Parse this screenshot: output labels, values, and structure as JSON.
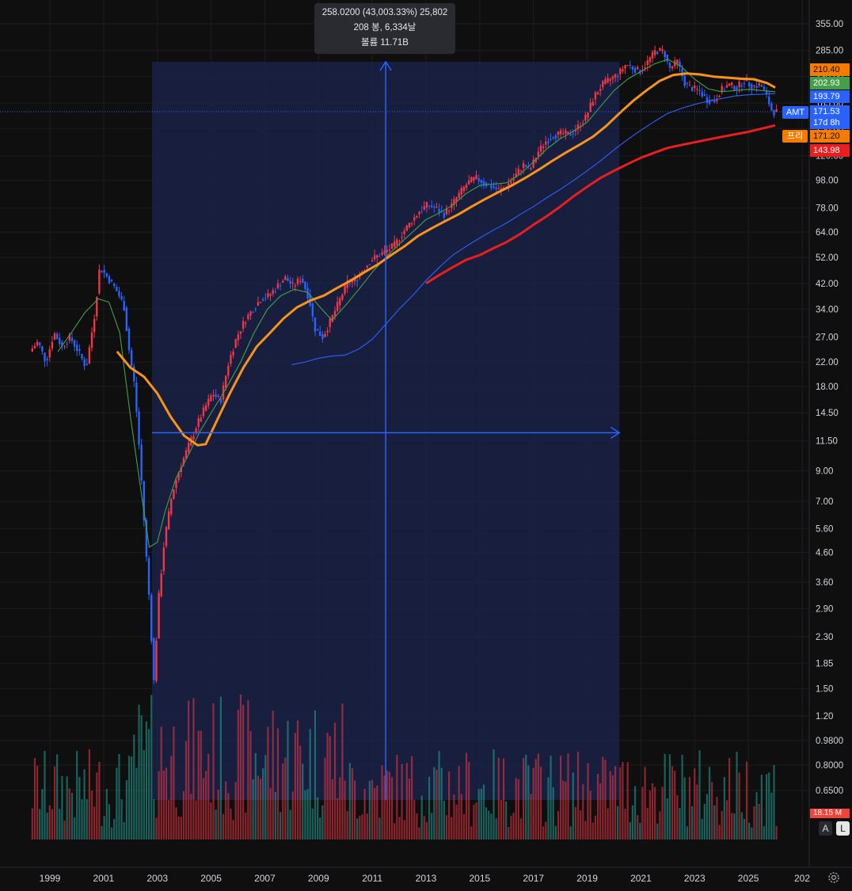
{
  "tooltip": {
    "line1": "258.0200 (43,003.33%) 25,802",
    "line2": "208 봉, 6,334날",
    "line3": "볼륨 11.71B"
  },
  "ticker": "AMT",
  "pre_label": "프리",
  "badges": {
    "ma_top": {
      "value": "210.40",
      "color": "#f57c00"
    },
    "ma_green": {
      "value": "202.93",
      "color": "#43a047"
    },
    "ma_blue": {
      "value": "193.79",
      "color": "#2962ff"
    },
    "price": {
      "value": "171.53",
      "countdown": "17d 8h",
      "color": "#2962ff"
    },
    "pre_price": {
      "value": "171.20",
      "color": "#f57c00"
    },
    "ma_red": {
      "value": "143.98",
      "color": "#e91e1e"
    },
    "volume": {
      "value": "18.15 M",
      "color": "#f44336"
    }
  },
  "scale_buttons": {
    "auto": "A",
    "log": "L"
  },
  "icons": {
    "settings": "gear-icon"
  },
  "colors": {
    "up": "#f23645",
    "down": "#2962ff",
    "ma20": "#43a047",
    "ma50": "#f7931a",
    "ma100": "#2962ff",
    "ma200": "#e91e1e",
    "range_fill": "#1a2246"
  },
  "chart_data": {
    "type": "candlestick",
    "title": "",
    "y_scale": "log",
    "y_ticks": [
      "355.00",
      "285.00",
      "230.00",
      "185.00",
      "150.00",
      "120.00",
      "98.00",
      "78.00",
      "64.00",
      "52.00",
      "42.00",
      "34.00",
      "27.00",
      "22.00",
      "18.00",
      "14.50",
      "11.50",
      "9.00",
      "7.00",
      "5.60",
      "4.60",
      "3.60",
      "2.90",
      "2.30",
      "1.85",
      "1.50",
      "1.20",
      "0.9800",
      "0.8000",
      "0.6500"
    ],
    "x_ticks": [
      "1999",
      "2001",
      "2003",
      "2005",
      "2007",
      "2009",
      "2011",
      "2013",
      "2015",
      "2017",
      "2019",
      "2021",
      "2023",
      "2025",
      "202"
    ],
    "x_range": [
      1998.0,
      2027.0
    ],
    "ylim": [
      0.5,
      400
    ],
    "price_path": [
      [
        1998.3,
        24
      ],
      [
        1998.6,
        26
      ],
      [
        1998.9,
        22
      ],
      [
        1999.2,
        28
      ],
      [
        1999.5,
        25
      ],
      [
        1999.8,
        27
      ],
      [
        2000.1,
        24
      ],
      [
        2000.4,
        21
      ],
      [
        2000.7,
        32
      ],
      [
        2000.9,
        48
      ],
      [
        2001.2,
        44
      ],
      [
        2001.5,
        40
      ],
      [
        2001.8,
        35
      ],
      [
        2002.0,
        24
      ],
      [
        2002.2,
        18
      ],
      [
        2002.4,
        10
      ],
      [
        2002.6,
        5
      ],
      [
        2002.8,
        2.6
      ],
      [
        2002.9,
        1.5
      ],
      [
        2003.1,
        3.2
      ],
      [
        2003.3,
        5
      ],
      [
        2003.6,
        7.5
      ],
      [
        2003.9,
        9.3
      ],
      [
        2004.2,
        11
      ],
      [
        2004.5,
        13
      ],
      [
        2004.8,
        15
      ],
      [
        2005.1,
        17
      ],
      [
        2005.4,
        16
      ],
      [
        2005.7,
        22
      ],
      [
        2006.0,
        27
      ],
      [
        2006.3,
        31
      ],
      [
        2006.6,
        34
      ],
      [
        2006.9,
        37
      ],
      [
        2007.2,
        38
      ],
      [
        2007.5,
        41
      ],
      [
        2007.8,
        44
      ],
      [
        2008.1,
        41
      ],
      [
        2008.4,
        44
      ],
      [
        2008.7,
        37
      ],
      [
        2008.9,
        29
      ],
      [
        2009.2,
        27
      ],
      [
        2009.5,
        31
      ],
      [
        2009.8,
        36
      ],
      [
        2010.1,
        42
      ],
      [
        2010.4,
        43
      ],
      [
        2010.7,
        47
      ],
      [
        2011.0,
        51
      ],
      [
        2011.3,
        53
      ],
      [
        2011.6,
        55
      ],
      [
        2011.9,
        58
      ],
      [
        2012.2,
        64
      ],
      [
        2012.5,
        70
      ],
      [
        2012.8,
        76
      ],
      [
        2013.1,
        80
      ],
      [
        2013.4,
        78
      ],
      [
        2013.7,
        74
      ],
      [
        2014.0,
        80
      ],
      [
        2014.3,
        88
      ],
      [
        2014.6,
        96
      ],
      [
        2014.9,
        100
      ],
      [
        2015.2,
        96
      ],
      [
        2015.5,
        93
      ],
      [
        2015.8,
        90
      ],
      [
        2016.1,
        95
      ],
      [
        2016.4,
        103
      ],
      [
        2016.7,
        112
      ],
      [
        2016.9,
        106
      ],
      [
        2017.2,
        123
      ],
      [
        2017.5,
        135
      ],
      [
        2017.8,
        142
      ],
      [
        2018.1,
        144
      ],
      [
        2018.4,
        143
      ],
      [
        2018.7,
        152
      ],
      [
        2019.0,
        165
      ],
      [
        2019.3,
        195
      ],
      [
        2019.6,
        215
      ],
      [
        2019.9,
        225
      ],
      [
        2020.2,
        235
      ],
      [
        2020.5,
        255
      ],
      [
        2020.8,
        245
      ],
      [
        2021.0,
        240
      ],
      [
        2021.3,
        260
      ],
      [
        2021.6,
        285
      ],
      [
        2021.9,
        283
      ],
      [
        2022.1,
        245
      ],
      [
        2022.4,
        260
      ],
      [
        2022.7,
        215
      ],
      [
        2022.9,
        210
      ],
      [
        2023.2,
        205
      ],
      [
        2023.5,
        190
      ],
      [
        2023.8,
        188
      ],
      [
        2024.0,
        205
      ],
      [
        2024.3,
        215
      ],
      [
        2024.6,
        210
      ],
      [
        2024.9,
        222
      ],
      [
        2025.2,
        212
      ],
      [
        2025.5,
        215
      ],
      [
        2025.7,
        198
      ],
      [
        2025.9,
        175
      ],
      [
        2026.0,
        172
      ]
    ],
    "series": [
      {
        "name": "",
        "kind": "ma20",
        "points": [
          [
            1999.3,
            24
          ],
          [
            1999.8,
            28
          ],
          [
            2000.3,
            33
          ],
          [
            2000.8,
            37
          ],
          [
            2001.2,
            36
          ],
          [
            2001.6,
            28
          ],
          [
            2002.0,
            14
          ],
          [
            2002.4,
            7.5
          ],
          [
            2002.7,
            4.8
          ],
          [
            2003.0,
            5
          ],
          [
            2003.3,
            6.5
          ],
          [
            2003.7,
            8.5
          ],
          [
            2004.1,
            10
          ],
          [
            2004.6,
            12.5
          ],
          [
            2005.1,
            15
          ],
          [
            2005.6,
            18
          ],
          [
            2006.1,
            22
          ],
          [
            2006.6,
            28
          ],
          [
            2007.1,
            34
          ],
          [
            2007.6,
            38
          ],
          [
            2008.1,
            40
          ],
          [
            2008.6,
            39
          ],
          [
            2009.0,
            35
          ],
          [
            2009.5,
            31
          ],
          [
            2010.0,
            35
          ],
          [
            2010.5,
            40
          ],
          [
            2011.0,
            46
          ],
          [
            2011.5,
            52
          ],
          [
            2012.0,
            58
          ],
          [
            2012.5,
            64
          ],
          [
            2013.0,
            71
          ],
          [
            2013.5,
            75
          ],
          [
            2014.0,
            80
          ],
          [
            2014.5,
            88
          ],
          [
            2015.0,
            94
          ],
          [
            2015.5,
            95
          ],
          [
            2016.0,
            96
          ],
          [
            2016.5,
            103
          ],
          [
            2017.0,
            114
          ],
          [
            2017.5,
            127
          ],
          [
            2018.0,
            138
          ],
          [
            2018.5,
            147
          ],
          [
            2019.0,
            158
          ],
          [
            2019.5,
            180
          ],
          [
            2020.0,
            205
          ],
          [
            2020.5,
            225
          ],
          [
            2021.0,
            240
          ],
          [
            2021.5,
            255
          ],
          [
            2022.0,
            265
          ],
          [
            2022.5,
            250
          ],
          [
            2023.0,
            225
          ],
          [
            2023.5,
            208
          ],
          [
            2024.0,
            203
          ],
          [
            2024.5,
            205
          ],
          [
            2025.0,
            207
          ],
          [
            2025.5,
            205
          ],
          [
            2026.0,
            203
          ]
        ]
      },
      {
        "name": "",
        "kind": "ma50",
        "points": [
          [
            2001.5,
            24
          ],
          [
            2002.0,
            21
          ],
          [
            2002.5,
            19.5
          ],
          [
            2003.0,
            17
          ],
          [
            2003.5,
            14
          ],
          [
            2004.0,
            12
          ],
          [
            2004.5,
            11.1
          ],
          [
            2004.8,
            11.2
          ],
          [
            2005.2,
            13.5
          ],
          [
            2005.7,
            17
          ],
          [
            2006.2,
            21
          ],
          [
            2006.7,
            25
          ],
          [
            2007.2,
            28
          ],
          [
            2007.7,
            31.5
          ],
          [
            2008.2,
            34.5
          ],
          [
            2008.7,
            36.5
          ],
          [
            2009.2,
            38
          ],
          [
            2009.7,
            40.5
          ],
          [
            2010.2,
            43
          ],
          [
            2010.7,
            46
          ],
          [
            2011.2,
            49
          ],
          [
            2011.7,
            53
          ],
          [
            2012.2,
            57
          ],
          [
            2012.7,
            62
          ],
          [
            2013.2,
            66
          ],
          [
            2013.7,
            70
          ],
          [
            2014.2,
            74
          ],
          [
            2014.7,
            79
          ],
          [
            2015.2,
            84
          ],
          [
            2015.7,
            89
          ],
          [
            2016.2,
            94
          ],
          [
            2016.7,
            100
          ],
          [
            2017.2,
            107
          ],
          [
            2017.7,
            115
          ],
          [
            2018.2,
            123
          ],
          [
            2018.7,
            131
          ],
          [
            2019.2,
            140
          ],
          [
            2019.7,
            153
          ],
          [
            2020.2,
            170
          ],
          [
            2020.7,
            188
          ],
          [
            2021.2,
            205
          ],
          [
            2021.7,
            222
          ],
          [
            2022.2,
            233
          ],
          [
            2022.7,
            236
          ],
          [
            2023.2,
            234
          ],
          [
            2023.7,
            230
          ],
          [
            2024.2,
            228
          ],
          [
            2024.7,
            226
          ],
          [
            2025.2,
            225
          ],
          [
            2025.7,
            218
          ],
          [
            2026.0,
            210
          ]
        ]
      },
      {
        "name": "",
        "kind": "ma100",
        "points": [
          [
            2008.0,
            21.5
          ],
          [
            2008.5,
            22
          ],
          [
            2009.0,
            22.7
          ],
          [
            2009.5,
            23.1
          ],
          [
            2010.0,
            23.3
          ],
          [
            2010.5,
            24.5
          ],
          [
            2011.0,
            26.5
          ],
          [
            2011.5,
            30
          ],
          [
            2012.0,
            34
          ],
          [
            2012.5,
            38
          ],
          [
            2013.0,
            43
          ],
          [
            2013.5,
            48
          ],
          [
            2014.0,
            53
          ],
          [
            2014.5,
            57
          ],
          [
            2015.0,
            61
          ],
          [
            2015.5,
            65
          ],
          [
            2016.0,
            69
          ],
          [
            2016.5,
            74
          ],
          [
            2017.0,
            79
          ],
          [
            2017.5,
            85
          ],
          [
            2018.0,
            91
          ],
          [
            2018.5,
            98
          ],
          [
            2019.0,
            106
          ],
          [
            2019.5,
            115
          ],
          [
            2020.0,
            126
          ],
          [
            2020.5,
            137
          ],
          [
            2021.0,
            148
          ],
          [
            2021.5,
            159
          ],
          [
            2022.0,
            170
          ],
          [
            2022.5,
            177
          ],
          [
            2023.0,
            183
          ],
          [
            2023.5,
            188
          ],
          [
            2024.0,
            192
          ],
          [
            2024.5,
            196
          ],
          [
            2025.0,
            198
          ],
          [
            2025.5,
            199
          ],
          [
            2026.0,
            200
          ]
        ]
      },
      {
        "name": "",
        "kind": "ma200",
        "points": [
          [
            2013.0,
            42
          ],
          [
            2013.5,
            45
          ],
          [
            2014.0,
            48
          ],
          [
            2014.5,
            51
          ],
          [
            2015.0,
            53
          ],
          [
            2015.5,
            56
          ],
          [
            2016.0,
            59
          ],
          [
            2016.5,
            63
          ],
          [
            2017.0,
            68
          ],
          [
            2017.5,
            73
          ],
          [
            2018.0,
            79
          ],
          [
            2018.5,
            86
          ],
          [
            2019.0,
            93
          ],
          [
            2019.5,
            100
          ],
          [
            2020.0,
            106
          ],
          [
            2020.5,
            112
          ],
          [
            2021.0,
            118
          ],
          [
            2021.5,
            123
          ],
          [
            2022.0,
            128
          ],
          [
            2022.5,
            131
          ],
          [
            2023.0,
            134
          ],
          [
            2023.5,
            137
          ],
          [
            2024.0,
            140
          ],
          [
            2024.5,
            143
          ],
          [
            2025.0,
            146
          ],
          [
            2025.5,
            150
          ],
          [
            2026.0,
            154
          ]
        ]
      }
    ],
    "measurement": {
      "start_x": 2002.8,
      "end_x": 2020.2,
      "start_price": 0.6,
      "end_price": 258.62
    },
    "volume_max_ratio": 0.37
  }
}
